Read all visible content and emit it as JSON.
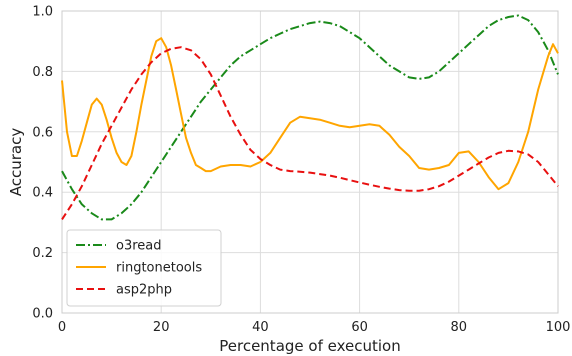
{
  "chart_data": {
    "type": "line",
    "xlabel": "Percentage of execution",
    "ylabel": "Accuracy",
    "xlim": [
      0,
      100
    ],
    "ylim": [
      0,
      1.0
    ],
    "xticks": [
      "0",
      "20",
      "40",
      "60",
      "80",
      "100"
    ],
    "yticks": [
      "0.0",
      "0.2",
      "0.4",
      "0.6",
      "0.8",
      "1.0"
    ],
    "grid": true,
    "legend_position": "bottom-left",
    "series": [
      {
        "name": "o3read",
        "color": "#1a8a1a",
        "style": "dash-dot",
        "x": [
          0,
          2,
          4,
          6,
          8,
          10,
          12,
          14,
          16,
          18,
          20,
          22,
          24,
          26,
          28,
          30,
          32,
          34,
          36,
          38,
          40,
          42,
          44,
          46,
          48,
          50,
          52,
          54,
          56,
          58,
          60,
          62,
          64,
          66,
          68,
          70,
          72,
          74,
          76,
          78,
          80,
          82,
          84,
          86,
          88,
          90,
          92,
          94,
          96,
          98,
          100
        ],
        "y": [
          0.47,
          0.41,
          0.36,
          0.33,
          0.31,
          0.31,
          0.33,
          0.36,
          0.4,
          0.45,
          0.5,
          0.55,
          0.6,
          0.65,
          0.7,
          0.74,
          0.78,
          0.82,
          0.85,
          0.87,
          0.89,
          0.91,
          0.925,
          0.94,
          0.95,
          0.96,
          0.965,
          0.96,
          0.95,
          0.93,
          0.91,
          0.88,
          0.85,
          0.82,
          0.8,
          0.78,
          0.775,
          0.78,
          0.8,
          0.83,
          0.86,
          0.89,
          0.92,
          0.95,
          0.97,
          0.98,
          0.985,
          0.97,
          0.93,
          0.87,
          0.79
        ]
      },
      {
        "name": "ringtonetools",
        "color": "#ffa500",
        "style": "solid",
        "x": [
          0,
          1,
          2,
          3,
          4,
          5,
          6,
          7,
          8,
          9,
          10,
          11,
          12,
          13,
          14,
          15,
          16,
          17,
          18,
          19,
          20,
          21,
          22,
          23,
          24,
          25,
          26,
          27,
          28,
          29,
          30,
          32,
          34,
          36,
          38,
          40,
          42,
          44,
          46,
          48,
          50,
          52,
          54,
          56,
          58,
          60,
          62,
          64,
          66,
          68,
          70,
          72,
          74,
          76,
          78,
          80,
          82,
          84,
          86,
          88,
          90,
          92,
          94,
          96,
          98,
          99,
          100
        ],
        "y": [
          0.77,
          0.6,
          0.52,
          0.52,
          0.57,
          0.63,
          0.69,
          0.71,
          0.69,
          0.64,
          0.58,
          0.53,
          0.5,
          0.49,
          0.52,
          0.6,
          0.69,
          0.77,
          0.85,
          0.9,
          0.91,
          0.88,
          0.82,
          0.74,
          0.66,
          0.58,
          0.53,
          0.49,
          0.48,
          0.47,
          0.47,
          0.485,
          0.49,
          0.49,
          0.485,
          0.5,
          0.53,
          0.58,
          0.63,
          0.65,
          0.645,
          0.64,
          0.63,
          0.62,
          0.615,
          0.62,
          0.625,
          0.62,
          0.59,
          0.55,
          0.52,
          0.48,
          0.475,
          0.48,
          0.49,
          0.53,
          0.535,
          0.5,
          0.45,
          0.41,
          0.43,
          0.5,
          0.6,
          0.74,
          0.85,
          0.89,
          0.86
        ]
      },
      {
        "name": "asp2php",
        "color": "#e81010",
        "style": "dashed",
        "x": [
          0,
          2,
          4,
          6,
          8,
          10,
          12,
          14,
          16,
          18,
          20,
          22,
          24,
          26,
          28,
          30,
          32,
          34,
          36,
          38,
          40,
          42,
          44,
          46,
          48,
          50,
          52,
          54,
          56,
          58,
          60,
          62,
          64,
          66,
          68,
          70,
          72,
          74,
          76,
          78,
          80,
          82,
          84,
          86,
          88,
          90,
          92,
          94,
          96,
          98,
          100
        ],
        "y": [
          0.31,
          0.36,
          0.42,
          0.49,
          0.56,
          0.62,
          0.68,
          0.74,
          0.79,
          0.83,
          0.86,
          0.875,
          0.88,
          0.87,
          0.84,
          0.79,
          0.72,
          0.65,
          0.59,
          0.54,
          0.51,
          0.49,
          0.475,
          0.47,
          0.468,
          0.465,
          0.46,
          0.455,
          0.448,
          0.44,
          0.432,
          0.425,
          0.418,
          0.412,
          0.407,
          0.405,
          0.405,
          0.41,
          0.42,
          0.435,
          0.455,
          0.475,
          0.495,
          0.515,
          0.53,
          0.537,
          0.535,
          0.525,
          0.5,
          0.46,
          0.42
        ]
      }
    ]
  }
}
